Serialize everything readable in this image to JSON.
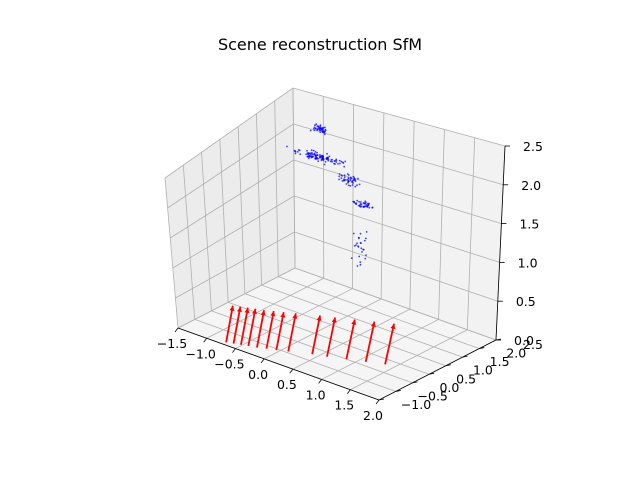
{
  "chart_data": {
    "type": "scatter",
    "projection": "3d",
    "title": "Scene reconstruction SfM",
    "xlabel": "",
    "ylabel": "",
    "zlabel": "",
    "xlim": [
      -1.5,
      2.0
    ],
    "ylim": [
      -1.0,
      2.5
    ],
    "zlim": [
      0.0,
      2.5
    ],
    "x_ticks": [
      "−1.5",
      "−1.0",
      "−0.5",
      "0.0",
      "0.5",
      "1.0",
      "1.5",
      "2.0"
    ],
    "y_ticks": [
      "−1.0",
      "−0.5",
      "0.0",
      "0.5",
      "1.0",
      "1.5",
      "2.0",
      "2.5"
    ],
    "z_ticks": [
      "0.0",
      "0.5",
      "1.0",
      "1.5",
      "2.0",
      "2.5"
    ],
    "grid": true,
    "colors": {
      "points": "#0000ff",
      "cameras": "#ff0000",
      "pane": "#f2f2f2",
      "grid": "#b0b0b0"
    },
    "point_clusters": [
      {
        "center": [
          -0.5,
          1.55,
          2.1
        ],
        "spread": [
          0.55,
          0.08,
          0.08
        ],
        "count": 110
      },
      {
        "center": [
          -0.7,
          1.95,
          2.3
        ],
        "spread": [
          0.2,
          0.08,
          0.08
        ],
        "count": 45
      },
      {
        "center": [
          -0.15,
          1.85,
          1.75
        ],
        "spread": [
          0.3,
          0.08,
          0.1
        ],
        "count": 45
      },
      {
        "center": [
          0.0,
          2.0,
          1.4
        ],
        "spread": [
          0.25,
          0.08,
          0.06
        ],
        "count": 40
      },
      {
        "center": [
          -0.1,
          2.0,
          0.8
        ],
        "spread": [
          0.2,
          0.25,
          0.5
        ],
        "count": 25
      }
    ],
    "cameras": [
      {
        "pos": [
          -0.72,
          -0.9,
          0.0
        ],
        "dir": [
          0.05,
          0.35,
          0.9
        ]
      },
      {
        "pos": [
          -0.62,
          -0.85,
          0.0
        ],
        "dir": [
          0.05,
          0.35,
          0.9
        ]
      },
      {
        "pos": [
          -0.52,
          -0.8,
          0.0
        ],
        "dir": [
          0.05,
          0.35,
          0.9
        ]
      },
      {
        "pos": [
          -0.42,
          -0.75,
          0.0
        ],
        "dir": [
          0.05,
          0.35,
          0.9
        ]
      },
      {
        "pos": [
          -0.3,
          -0.7,
          0.0
        ],
        "dir": [
          0.05,
          0.35,
          0.9
        ]
      },
      {
        "pos": [
          -0.18,
          -0.62,
          0.0
        ],
        "dir": [
          0.05,
          0.35,
          0.9
        ]
      },
      {
        "pos": [
          -0.05,
          -0.55,
          0.0
        ],
        "dir": [
          0.05,
          0.35,
          0.9
        ]
      },
      {
        "pos": [
          0.1,
          -0.45,
          0.0
        ],
        "dir": [
          0.05,
          0.35,
          0.9
        ]
      },
      {
        "pos": [
          0.4,
          -0.25,
          0.0
        ],
        "dir": [
          0.05,
          0.35,
          0.9
        ]
      },
      {
        "pos": [
          0.6,
          -0.15,
          0.0
        ],
        "dir": [
          0.05,
          0.35,
          0.9
        ]
      },
      {
        "pos": [
          0.85,
          0.0,
          0.0
        ],
        "dir": [
          0.05,
          0.35,
          0.9
        ]
      },
      {
        "pos": [
          1.1,
          0.15,
          0.0
        ],
        "dir": [
          0.05,
          0.35,
          0.9
        ]
      },
      {
        "pos": [
          1.35,
          0.3,
          0.0
        ],
        "dir": [
          0.05,
          0.35,
          0.9
        ]
      }
    ]
  }
}
